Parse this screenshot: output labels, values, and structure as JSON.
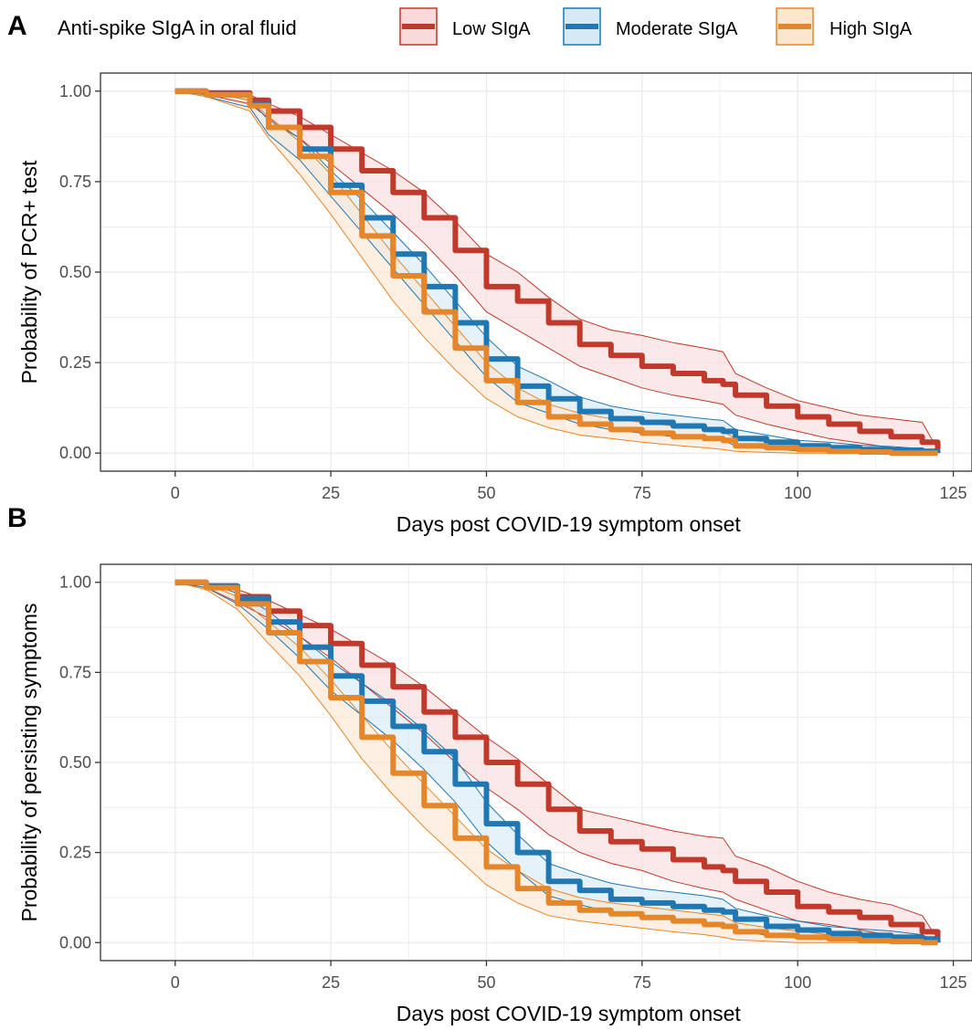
{
  "legend": {
    "title": "Anti-spike SIgA in oral fluid",
    "entries": [
      "Low SIgA",
      "Moderate SIgA",
      "High SIgA"
    ]
  },
  "colors": {
    "low": "#c0392b",
    "low_fill": "#f8dada",
    "moderate": "#1f77b4",
    "moderate_fill": "#d6e9f5",
    "high": "#e6862a",
    "high_fill": "#fbe6cf",
    "overlap_fill": "#d8d8cc",
    "grid": "#ebebeb",
    "axis": "#333333"
  },
  "chart_data": [
    {
      "panel_label": "A",
      "type": "line",
      "xlabel": "Days post COVID-19 symptom onset",
      "ylabel": "Probability of PCR+ test",
      "xlim": [
        -12,
        128
      ],
      "ylim": [
        -0.05,
        1.05
      ],
      "xticks": [
        "0",
        "25",
        "50",
        "75",
        "100",
        "125"
      ],
      "xtick_values": [
        0,
        25,
        50,
        75,
        100,
        125
      ],
      "yticks": [
        "0.00",
        "0.25",
        "0.50",
        "0.75",
        "1.00"
      ],
      "ytick_values": [
        0,
        0.25,
        0.5,
        0.75,
        1.0
      ],
      "grid": true,
      "x": [
        0,
        5,
        12,
        15,
        20,
        25,
        30,
        35,
        40,
        45,
        50,
        55,
        60,
        65,
        70,
        75,
        80,
        85,
        88,
        90,
        95,
        100,
        105,
        110,
        115,
        120,
        122.5
      ],
      "series": [
        {
          "name": "Low SIgA",
          "values": [
            1.0,
            0.995,
            0.975,
            0.945,
            0.9,
            0.84,
            0.78,
            0.72,
            0.65,
            0.56,
            0.46,
            0.42,
            0.36,
            0.3,
            0.27,
            0.24,
            0.22,
            0.2,
            0.19,
            0.16,
            0.13,
            0.1,
            0.08,
            0.06,
            0.045,
            0.03,
            0.01
          ],
          "lower": [
            1.0,
            0.99,
            0.965,
            0.925,
            0.87,
            0.8,
            0.73,
            0.66,
            0.58,
            0.49,
            0.39,
            0.34,
            0.29,
            0.24,
            0.21,
            0.18,
            0.16,
            0.145,
            0.135,
            0.105,
            0.08,
            0.06,
            0.04,
            0.028,
            0.015,
            0.005,
            0.0
          ],
          "upper": [
            1.0,
            1.0,
            0.99,
            0.965,
            0.93,
            0.88,
            0.83,
            0.78,
            0.72,
            0.64,
            0.55,
            0.5,
            0.43,
            0.37,
            0.34,
            0.325,
            0.305,
            0.29,
            0.28,
            0.22,
            0.18,
            0.145,
            0.125,
            0.105,
            0.095,
            0.085,
            0.01
          ]
        },
        {
          "name": "Moderate SIgA",
          "values": [
            1.0,
            0.99,
            0.965,
            0.9,
            0.84,
            0.74,
            0.65,
            0.55,
            0.46,
            0.36,
            0.26,
            0.185,
            0.15,
            0.115,
            0.095,
            0.085,
            0.075,
            0.065,
            0.06,
            0.04,
            0.03,
            0.02,
            0.015,
            0.01,
            0.008,
            0.005,
            0.0
          ],
          "lower": [
            1.0,
            0.985,
            0.955,
            0.88,
            0.81,
            0.71,
            0.61,
            0.51,
            0.41,
            0.31,
            0.21,
            0.14,
            0.11,
            0.08,
            0.065,
            0.055,
            0.045,
            0.04,
            0.035,
            0.02,
            0.012,
            0.006,
            0.004,
            0.002,
            0.001,
            0.0,
            0.0
          ],
          "upper": [
            1.0,
            0.998,
            0.975,
            0.92,
            0.87,
            0.78,
            0.7,
            0.61,
            0.52,
            0.42,
            0.32,
            0.24,
            0.2,
            0.155,
            0.13,
            0.115,
            0.105,
            0.095,
            0.09,
            0.065,
            0.05,
            0.035,
            0.03,
            0.022,
            0.018,
            0.012,
            0.0
          ]
        },
        {
          "name": "High SIgA",
          "values": [
            1.0,
            0.99,
            0.96,
            0.9,
            0.82,
            0.72,
            0.6,
            0.49,
            0.39,
            0.29,
            0.2,
            0.14,
            0.1,
            0.08,
            0.065,
            0.055,
            0.045,
            0.04,
            0.035,
            0.02,
            0.015,
            0.01,
            0.005,
            0.003,
            0.0,
            0.0,
            0.0
          ],
          "lower": [
            1.0,
            0.985,
            0.945,
            0.87,
            0.77,
            0.66,
            0.54,
            0.42,
            0.32,
            0.23,
            0.15,
            0.1,
            0.07,
            0.05,
            0.04,
            0.03,
            0.022,
            0.015,
            0.01,
            0.005,
            0.002,
            0.0,
            0.0,
            0.0,
            0.0,
            0.0,
            0.0
          ],
          "upper": [
            1.0,
            0.998,
            0.975,
            0.93,
            0.86,
            0.77,
            0.66,
            0.55,
            0.45,
            0.35,
            0.25,
            0.18,
            0.135,
            0.11,
            0.095,
            0.085,
            0.075,
            0.068,
            0.06,
            0.04,
            0.03,
            0.022,
            0.015,
            0.01,
            0.006,
            0.003,
            0.0
          ]
        }
      ]
    },
    {
      "panel_label": "B",
      "type": "line",
      "xlabel": "Days post COVID-19 symptom onset",
      "ylabel": "Probability of persisting symptoms",
      "xlim": [
        -12,
        128
      ],
      "ylim": [
        -0.05,
        1.05
      ],
      "xticks": [
        "0",
        "25",
        "50",
        "75",
        "100",
        "125"
      ],
      "xtick_values": [
        0,
        25,
        50,
        75,
        100,
        125
      ],
      "yticks": [
        "0.00",
        "0.25",
        "0.50",
        "0.75",
        "1.00"
      ],
      "ytick_values": [
        0,
        0.25,
        0.5,
        0.75,
        1.0
      ],
      "grid": true,
      "x": [
        0,
        5,
        10,
        15,
        20,
        25,
        30,
        35,
        40,
        45,
        50,
        55,
        60,
        65,
        70,
        75,
        80,
        85,
        88,
        90,
        95,
        100,
        105,
        110,
        115,
        120,
        122.5
      ],
      "series": [
        {
          "name": "Low SIgA",
          "values": [
            1.0,
            0.99,
            0.96,
            0.92,
            0.88,
            0.83,
            0.77,
            0.71,
            0.64,
            0.57,
            0.5,
            0.44,
            0.37,
            0.31,
            0.28,
            0.26,
            0.23,
            0.21,
            0.2,
            0.17,
            0.14,
            0.1,
            0.085,
            0.07,
            0.05,
            0.03,
            0.01
          ],
          "lower": [
            1.0,
            0.985,
            0.945,
            0.9,
            0.85,
            0.79,
            0.72,
            0.65,
            0.58,
            0.5,
            0.43,
            0.37,
            0.3,
            0.25,
            0.22,
            0.2,
            0.17,
            0.15,
            0.14,
            0.12,
            0.09,
            0.06,
            0.05,
            0.035,
            0.02,
            0.008,
            0.0
          ],
          "upper": [
            1.0,
            0.998,
            0.98,
            0.95,
            0.91,
            0.87,
            0.82,
            0.77,
            0.71,
            0.64,
            0.57,
            0.51,
            0.44,
            0.37,
            0.35,
            0.33,
            0.31,
            0.295,
            0.29,
            0.24,
            0.21,
            0.17,
            0.14,
            0.12,
            0.105,
            0.075,
            0.01
          ]
        },
        {
          "name": "Moderate SIgA",
          "values": [
            1.0,
            0.99,
            0.955,
            0.89,
            0.82,
            0.74,
            0.67,
            0.6,
            0.53,
            0.44,
            0.33,
            0.25,
            0.17,
            0.145,
            0.12,
            0.11,
            0.1,
            0.09,
            0.085,
            0.065,
            0.045,
            0.035,
            0.025,
            0.02,
            0.015,
            0.01,
            0.0
          ],
          "lower": [
            1.0,
            0.985,
            0.94,
            0.87,
            0.79,
            0.7,
            0.63,
            0.56,
            0.48,
            0.39,
            0.28,
            0.2,
            0.13,
            0.105,
            0.085,
            0.075,
            0.065,
            0.055,
            0.05,
            0.035,
            0.02,
            0.012,
            0.008,
            0.005,
            0.003,
            0.002,
            0.0
          ],
          "upper": [
            1.0,
            0.998,
            0.97,
            0.92,
            0.85,
            0.78,
            0.72,
            0.66,
            0.59,
            0.51,
            0.39,
            0.3,
            0.22,
            0.19,
            0.165,
            0.15,
            0.14,
            0.13,
            0.12,
            0.095,
            0.075,
            0.06,
            0.045,
            0.038,
            0.032,
            0.022,
            0.0
          ]
        },
        {
          "name": "High SIgA",
          "values": [
            1.0,
            0.985,
            0.94,
            0.86,
            0.78,
            0.68,
            0.57,
            0.47,
            0.38,
            0.29,
            0.21,
            0.15,
            0.11,
            0.09,
            0.08,
            0.07,
            0.06,
            0.05,
            0.045,
            0.03,
            0.02,
            0.015,
            0.01,
            0.005,
            0.003,
            0.0,
            0.0
          ],
          "lower": [
            1.0,
            0.98,
            0.925,
            0.83,
            0.74,
            0.63,
            0.51,
            0.41,
            0.32,
            0.24,
            0.16,
            0.11,
            0.075,
            0.06,
            0.05,
            0.04,
            0.03,
            0.022,
            0.015,
            0.008,
            0.004,
            0.0,
            0.0,
            0.0,
            0.0,
            0.0,
            0.0
          ],
          "upper": [
            1.0,
            0.995,
            0.96,
            0.89,
            0.82,
            0.73,
            0.63,
            0.53,
            0.44,
            0.35,
            0.26,
            0.2,
            0.15,
            0.125,
            0.11,
            0.1,
            0.09,
            0.08,
            0.075,
            0.055,
            0.042,
            0.032,
            0.022,
            0.015,
            0.01,
            0.006,
            0.0
          ]
        }
      ]
    }
  ]
}
